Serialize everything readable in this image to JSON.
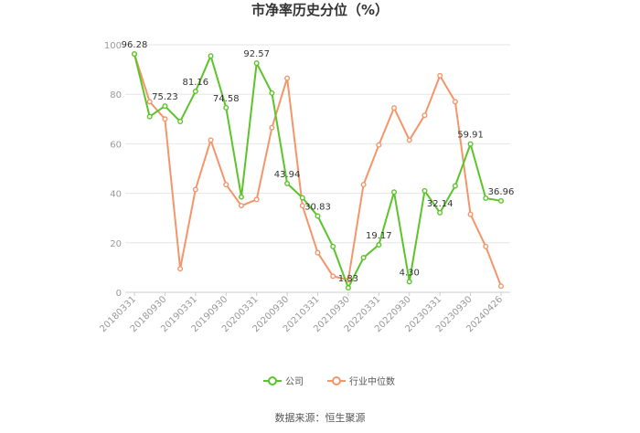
{
  "chart_data": {
    "type": "line",
    "title": "市净率历史分位（%）",
    "xlabel": "",
    "ylabel": "",
    "ylim": [
      0,
      100
    ],
    "yticks": [
      0,
      20,
      40,
      60,
      80,
      100
    ],
    "grid": true,
    "legend_position": "bottom",
    "x": [
      "20180331",
      "20180630",
      "20180930",
      "20181231",
      "20190331",
      "20190630",
      "20190930",
      "20191231",
      "20200331",
      "20200630",
      "20200930",
      "20201231",
      "20210331",
      "20210630",
      "20210930",
      "20211231",
      "20220331",
      "20220630",
      "20220930",
      "20221231",
      "20230331",
      "20230630",
      "20230930",
      "20231231",
      "20240426"
    ],
    "x_tick_labels": [
      "20180331",
      "20180930",
      "20190331",
      "20190930",
      "20200331",
      "20200930",
      "20210331",
      "20210930",
      "20220331",
      "20220930",
      "20230331",
      "20230930",
      "20240426"
    ],
    "series": [
      {
        "name": "公司",
        "color": "#5cc42a",
        "values": [
          96.28,
          71,
          75.23,
          69,
          81.16,
          95.5,
          74.58,
          38.5,
          92.57,
          80.5,
          43.94,
          38.2,
          30.83,
          18.5,
          1.83,
          14,
          19.17,
          40.5,
          4.3,
          41,
          32.14,
          43,
          59.91,
          38,
          36.96
        ],
        "data_labels": [
          {
            "index": 0,
            "text": "96.28"
          },
          {
            "index": 2,
            "text": "75.23"
          },
          {
            "index": 4,
            "text": "81.16"
          },
          {
            "index": 6,
            "text": "74.58"
          },
          {
            "index": 8,
            "text": "92.57"
          },
          {
            "index": 10,
            "text": "43.94"
          },
          {
            "index": 12,
            "text": "30.83"
          },
          {
            "index": 14,
            "text": "1.83"
          },
          {
            "index": 16,
            "text": "19.17"
          },
          {
            "index": 18,
            "text": "4.30"
          },
          {
            "index": 20,
            "text": "32.14"
          },
          {
            "index": 22,
            "text": "59.91"
          },
          {
            "index": 24,
            "text": "36.96"
          }
        ]
      },
      {
        "name": "行业中位数",
        "color": "#f4956a",
        "values": [
          96.28,
          77,
          70,
          9.5,
          41.5,
          61.5,
          43.5,
          35,
          37.5,
          66.5,
          86.5,
          35,
          16,
          6.5,
          5,
          43.5,
          59.5,
          74.5,
          61.5,
          71.5,
          87.5,
          77,
          31.5,
          18.5,
          2.5
        ]
      }
    ]
  },
  "source": "数据来源：恒生聚源"
}
